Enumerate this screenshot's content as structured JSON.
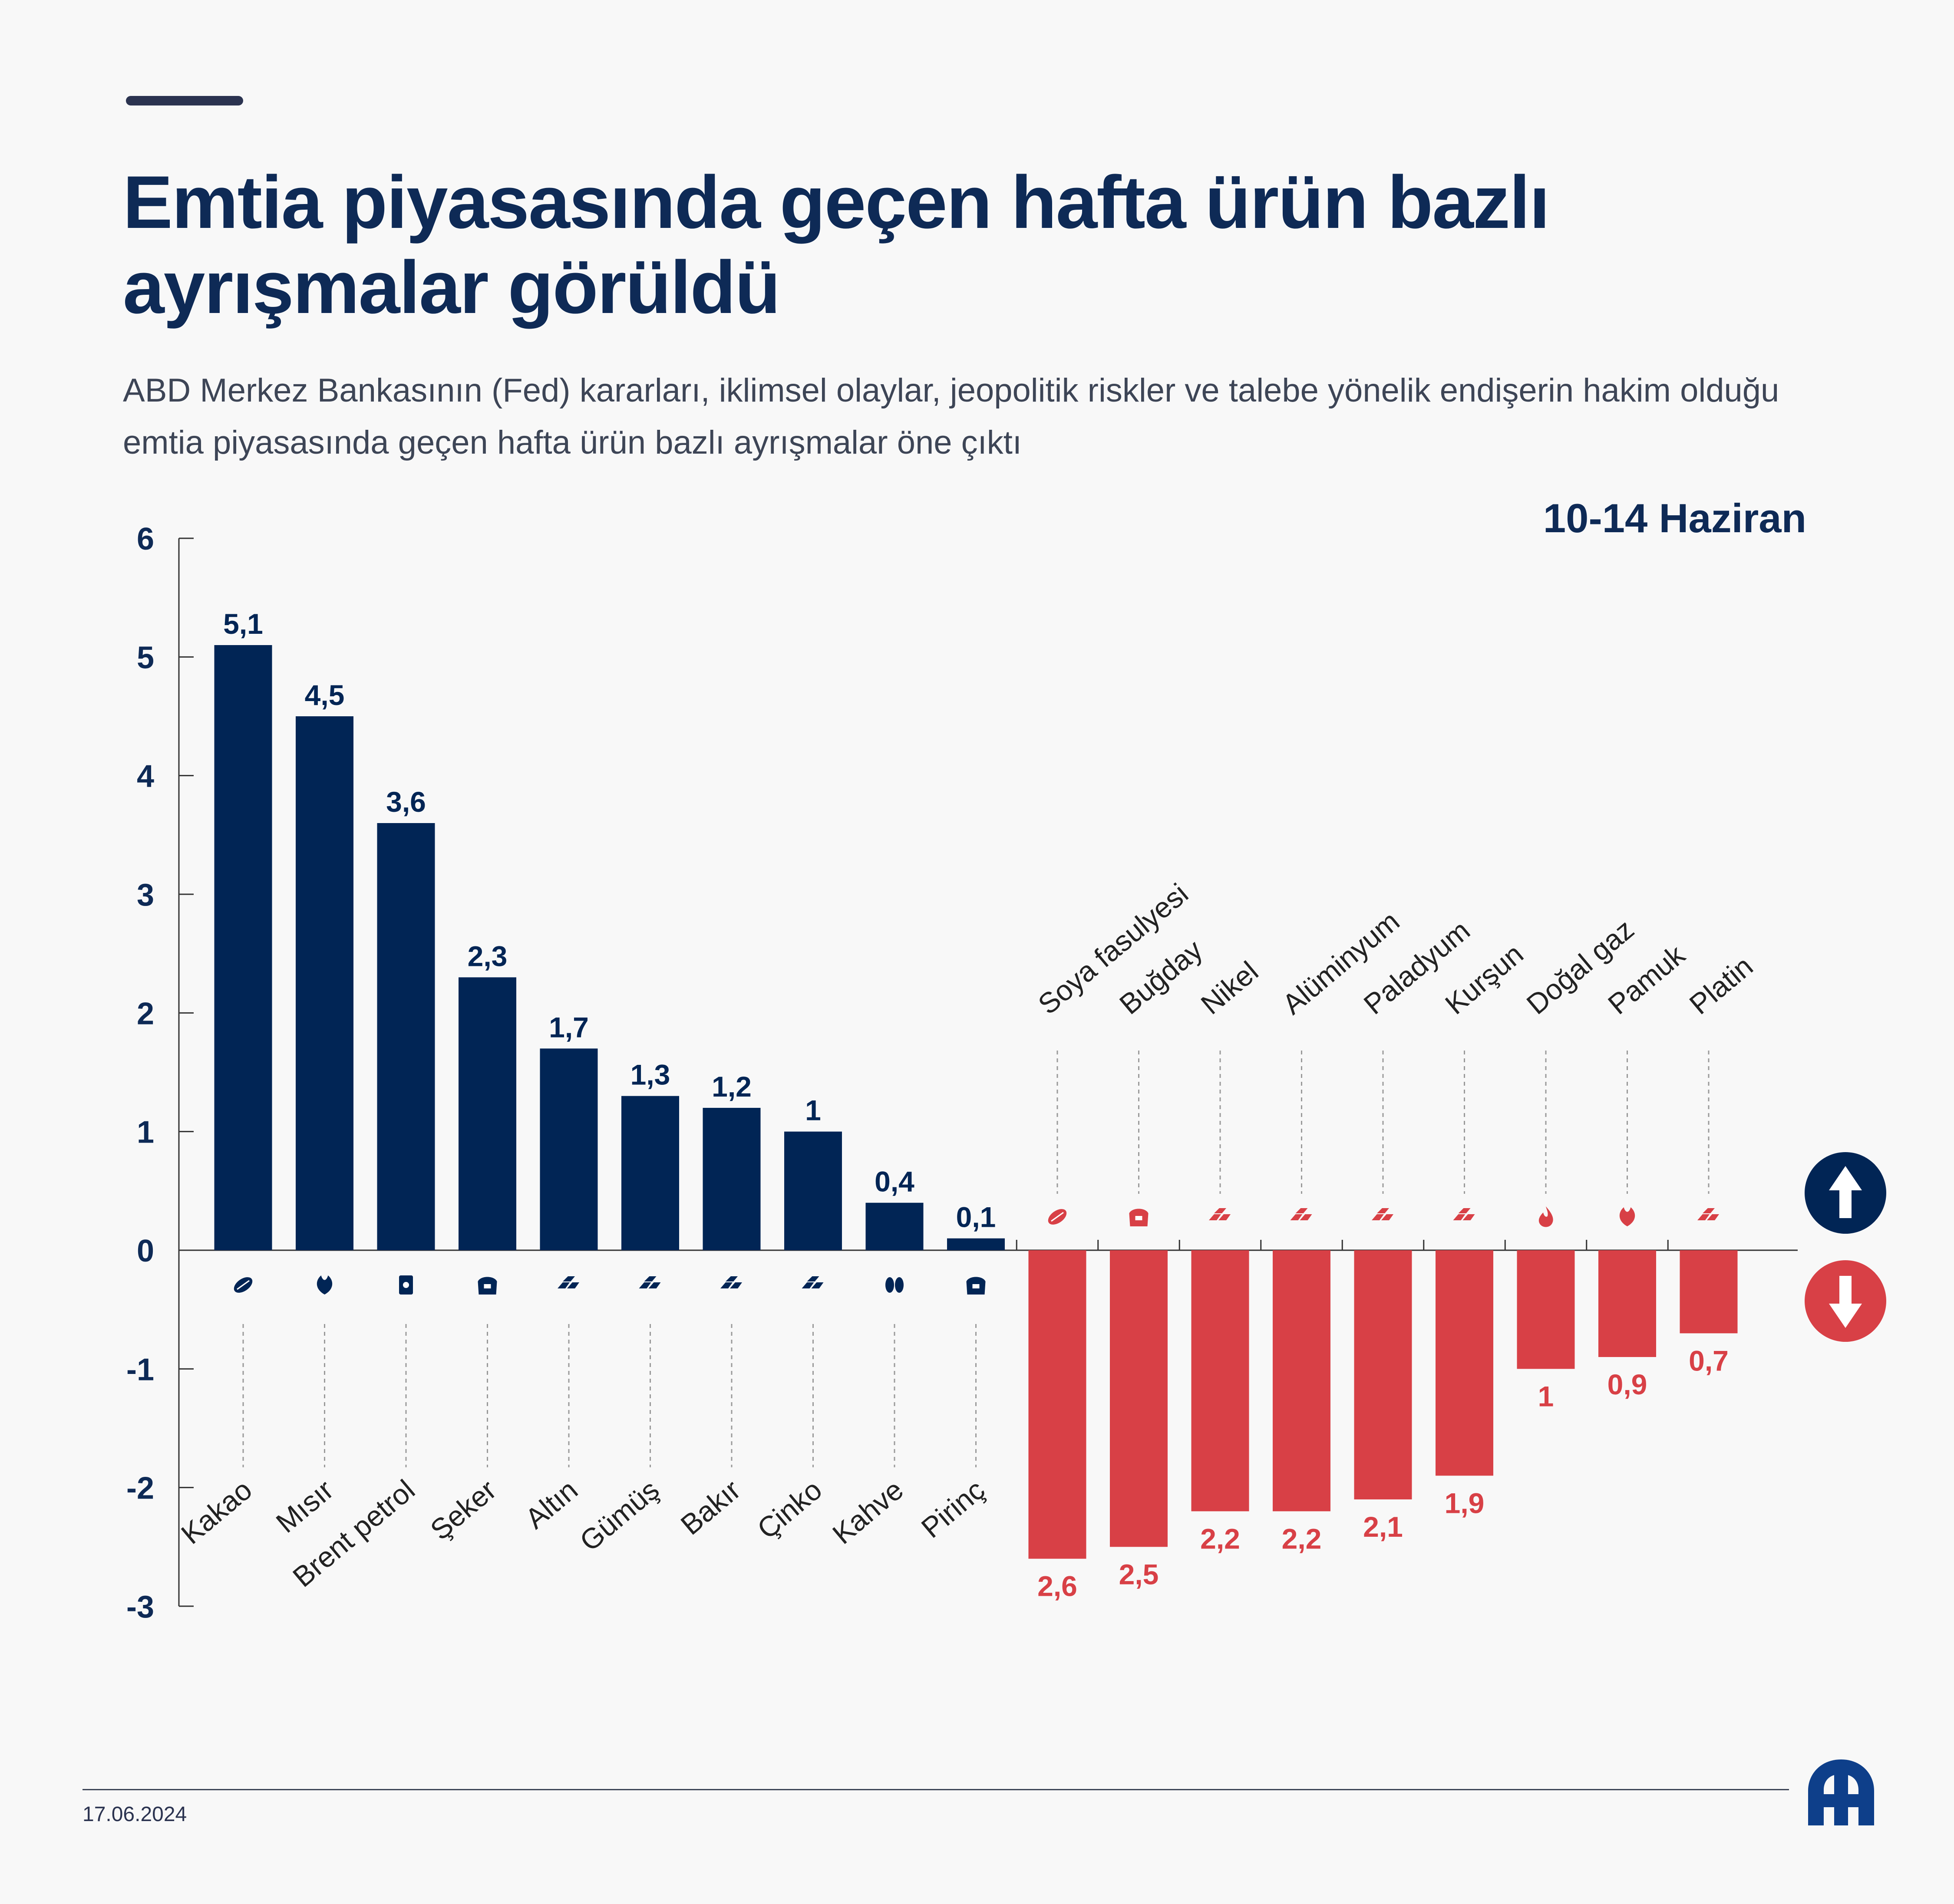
{
  "header": {
    "title": "Emtia piyasasında geçen hafta ürün bazlı ayrışmalar görüldü",
    "subtitle": "ABD Merkez Bankasının (Fed) kararları, iklimsel olaylar, jeopolitik riskler ve talebe yönelik endişerin hakim olduğu emtia piyasasında geçen hafta ürün bazlı ayrışmalar öne çıktı",
    "date_range": "10-14 Haziran"
  },
  "footer": {
    "date": "17.06.2024",
    "logo": "AA"
  },
  "colors": {
    "positive": "#012555",
    "negative": "#d84046",
    "text": "#0e2a56"
  },
  "chart_data": {
    "type": "bar",
    "title": "",
    "xlabel": "",
    "ylabel": "",
    "ylim": [
      -3,
      6
    ],
    "yticks": [
      "6",
      "5",
      "4",
      "3",
      "2",
      "1",
      "0",
      "-1",
      "-2",
      "-3"
    ],
    "grid": false,
    "legend": "none",
    "categories": [
      "Kakao",
      "Mısır",
      "Brent petrol",
      "Şeker",
      "Altın",
      "Gümüş",
      "Bakır",
      "Çinko",
      "Kahve",
      "Pirinç",
      "Soya fasulyesi",
      "Buğday",
      "Nikel",
      "Alüminyum",
      "Paladyum",
      "Kurşun",
      "Doğal gaz",
      "Pamuk",
      "Platin"
    ],
    "values": [
      5.1,
      4.5,
      3.6,
      2.3,
      1.7,
      1.3,
      1.2,
      1.0,
      0.4,
      0.1,
      -2.6,
      -2.5,
      -2.2,
      -2.2,
      -2.1,
      -1.9,
      -1.0,
      -0.9,
      -0.7
    ],
    "value_labels": [
      "5,1",
      "4,5",
      "3,6",
      "2,3",
      "1,7",
      "1,3",
      "1,2",
      "1",
      "0,4",
      "0,1",
      "2,6",
      "2,5",
      "2,2",
      "2,2",
      "2,1",
      "1,9",
      "1",
      "0,9",
      "0,7"
    ],
    "icons": [
      "cocoa-icon",
      "corn-icon",
      "oil-barrel-icon",
      "sugar-icon",
      "gold-bars-icon",
      "silver-bars-icon",
      "copper-bars-icon",
      "zinc-bars-icon",
      "coffee-bean-icon",
      "rice-sack-icon",
      "soybean-icon",
      "wheat-sack-icon",
      "nickel-bars-icon",
      "aluminum-bars-icon",
      "palladium-bars-icon",
      "lead-bars-icon",
      "gas-flame-icon",
      "cotton-icon",
      "platinum-bars-icon"
    ]
  },
  "legend_icons": {
    "up": "arrow-up-icon",
    "down": "arrow-down-icon"
  }
}
